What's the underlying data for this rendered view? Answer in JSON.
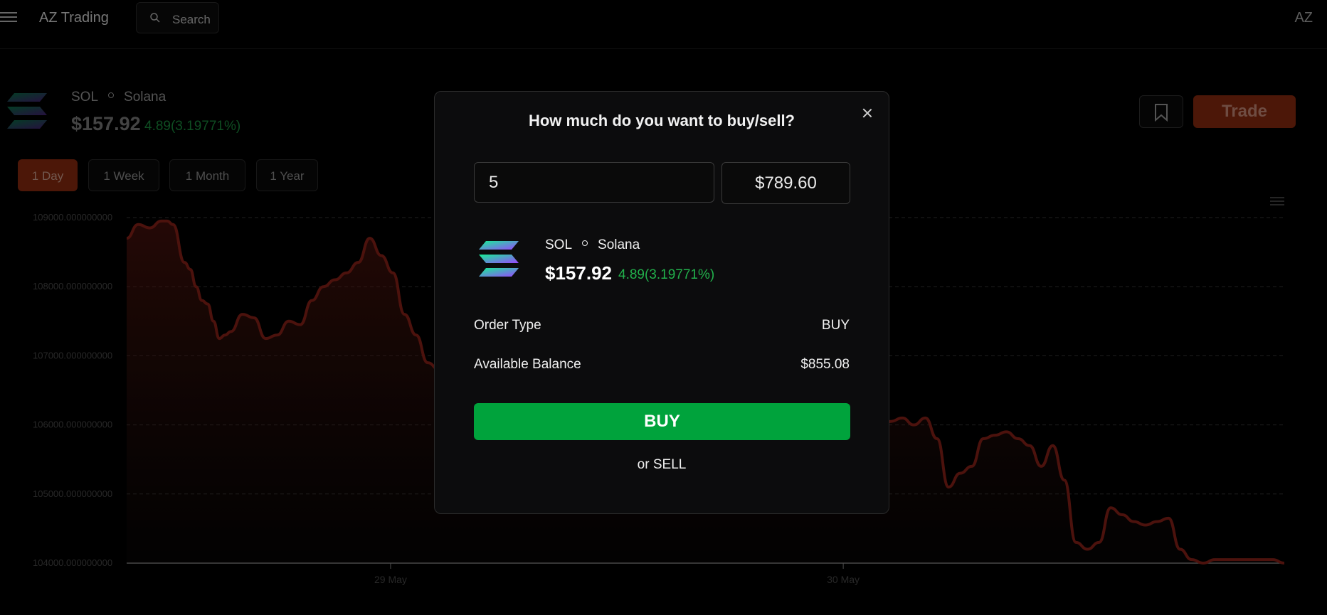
{
  "header": {
    "brand": "AZ Trading",
    "search_placeholder": "Search",
    "avatar_initials": "AZ"
  },
  "asset": {
    "symbol": "SOL",
    "name": "Solana",
    "price": "$157.92",
    "change": "4.89(3.19771%)"
  },
  "actions": {
    "trade_label": "Trade"
  },
  "ranges": [
    {
      "label": "1 Day",
      "active": true
    },
    {
      "label": "1 Week",
      "active": false
    },
    {
      "label": "1 Month",
      "active": false
    },
    {
      "label": "1 Year",
      "active": false
    }
  ],
  "chart_data": {
    "type": "area",
    "title": "",
    "xlabel": "",
    "ylabel": "",
    "ylim": [
      104000,
      109000
    ],
    "y_ticks": [
      "109000.000000000",
      "108000.000000000",
      "107000.000000000",
      "106000.000000000",
      "105000.000000000",
      "104000.000000000"
    ],
    "x_ticks": [
      {
        "label": "29 May",
        "pos": 0.228
      },
      {
        "label": "30 May",
        "pos": 0.619
      }
    ],
    "grid": true,
    "legend": "none",
    "line_color": "#8b2219",
    "series": [
      {
        "x": [
          0,
          0.01,
          0.02,
          0.03,
          0.035,
          0.04,
          0.05,
          0.055,
          0.06,
          0.065,
          0.07,
          0.075,
          0.08,
          0.085,
          0.09,
          0.1,
          0.11,
          0.12,
          0.13,
          0.14,
          0.15,
          0.16,
          0.17,
          0.18,
          0.19,
          0.2,
          0.21,
          0.22,
          0.23,
          0.24,
          0.25,
          0.26,
          0.27,
          0.28,
          0.6524,
          0.66,
          0.67,
          0.68,
          0.69,
          0.7,
          0.71,
          0.72,
          0.73,
          0.74,
          0.75,
          0.76,
          0.77,
          0.78,
          0.79,
          0.8,
          0.81,
          0.82,
          0.83,
          0.84,
          0.85,
          0.86,
          0.87,
          0.88,
          0.89,
          0.9,
          0.91,
          0.92,
          0.93,
          0.94,
          0.95,
          0.96,
          0.97,
          0.98,
          0.99,
          1.0
        ],
        "values": [
          108700,
          108900,
          108850,
          108950,
          108950,
          108900,
          108350,
          108250,
          108000,
          107800,
          107750,
          107500,
          107250,
          107300,
          107350,
          107600,
          107550,
          107250,
          107300,
          107500,
          107450,
          107800,
          108000,
          108100,
          108200,
          108350,
          108700,
          108450,
          108200,
          107600,
          107300,
          106900,
          106800,
          106900,
          106000,
          106050,
          106100,
          106000,
          106100,
          105800,
          105100,
          105300,
          105400,
          105800,
          105850,
          105900,
          105800,
          105700,
          105400,
          105700,
          105200,
          104300,
          104200,
          104300,
          104800,
          104700,
          104600,
          104550,
          104600,
          104650,
          104200,
          104050,
          104000,
          104050,
          104050,
          104050,
          104050,
          104050,
          104050,
          104000
        ]
      }
    ]
  },
  "modal": {
    "title": "How much do you want to buy/sell?",
    "quantity_value": "5",
    "amount_value": "$789.60",
    "asset_symbol": "SOL",
    "asset_name": "Solana",
    "asset_price": "$157.92",
    "asset_change": "4.89(3.19771%)",
    "order_type_label": "Order Type",
    "order_type_value": "BUY",
    "balance_label": "Available Balance",
    "balance_value": "$855.08",
    "buy_label": "BUY",
    "sell_label": "or SELL"
  },
  "colors": {
    "background": "#000000",
    "accent": "#8a2b10",
    "positive": "#22b14c",
    "buy_button": "#00a33c"
  },
  "icons": {
    "menu": "hamburger-icon",
    "search": "search-icon",
    "bookmark": "bookmark-icon",
    "close": "close-icon",
    "asset": "solana-logo-icon"
  }
}
